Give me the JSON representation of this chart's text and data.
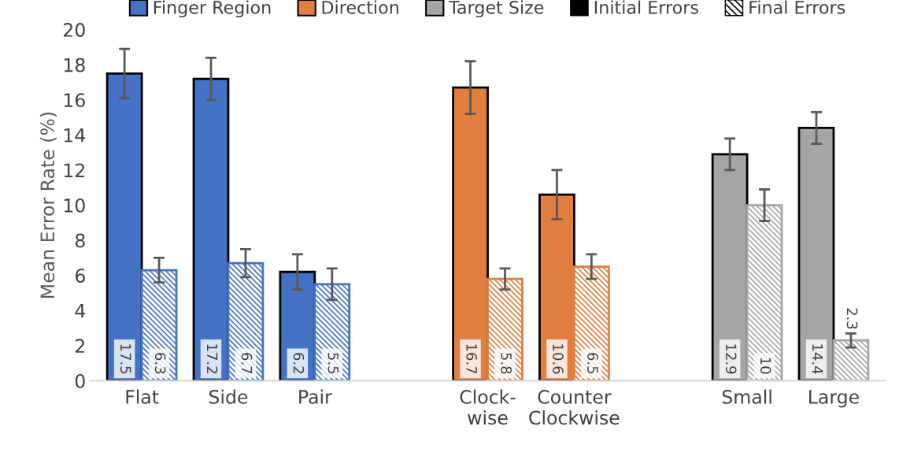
{
  "chart_data": {
    "type": "bar",
    "ylabel": "Mean Error Rate (%)",
    "categories": [
      "Flat",
      "Side",
      "Pair",
      null,
      "Clock-\nwise",
      "Counter\nClockwise",
      null,
      "Small",
      "Large"
    ],
    "series": [
      {
        "name": "Finger Region",
        "color": "#4472c4",
        "values": [
          17.5,
          17.2,
          6.2,
          null,
          null,
          null,
          null,
          null,
          null
        ],
        "errors": [
          1.4,
          1.2,
          1.0,
          null,
          null,
          null,
          null,
          null,
          null
        ]
      },
      {
        "color": "#4472c4",
        "values": [
          6.3,
          6.7,
          5.5,
          null,
          null,
          null,
          null,
          null,
          null
        ],
        "errors": [
          0.7,
          0.8,
          0.9,
          null,
          null,
          null,
          null,
          null,
          null
        ]
      },
      {
        "name": "Direction",
        "color": "#e07f40",
        "values": [
          null,
          null,
          null,
          null,
          16.7,
          10.6,
          null,
          null,
          null
        ],
        "errors": [
          null,
          null,
          null,
          null,
          1.5,
          1.4,
          null,
          null,
          null
        ]
      },
      {
        "color": "#e07f40",
        "values": [
          null,
          null,
          null,
          null,
          5.8,
          6.5,
          null,
          null,
          null
        ],
        "errors": [
          null,
          null,
          null,
          null,
          0.6,
          0.7,
          null,
          null,
          null
        ]
      },
      {
        "name": "Target Size",
        "color": "#a5a5a5",
        "values": [
          null,
          null,
          null,
          null,
          null,
          null,
          null,
          12.9,
          14.4
        ],
        "errors": [
          null,
          null,
          null,
          null,
          null,
          null,
          null,
          0.9,
          0.9
        ]
      },
      {
        "color": "#a5a5a5",
        "values": [
          null,
          null,
          null,
          null,
          null,
          null,
          null,
          10,
          2.3
        ],
        "errors": [
          null,
          null,
          null,
          null,
          null,
          null,
          null,
          0.9,
          0.4
        ]
      }
    ],
    "annotations": [
      "Initial Errors",
      "Final Errors"
    ],
    "ylim": [
      0,
      20
    ],
    "yticks": [
      0,
      2,
      4,
      6,
      8,
      10,
      12,
      14,
      16,
      18,
      20
    ],
    "data_labels": true,
    "grid": false,
    "legend": "top"
  }
}
